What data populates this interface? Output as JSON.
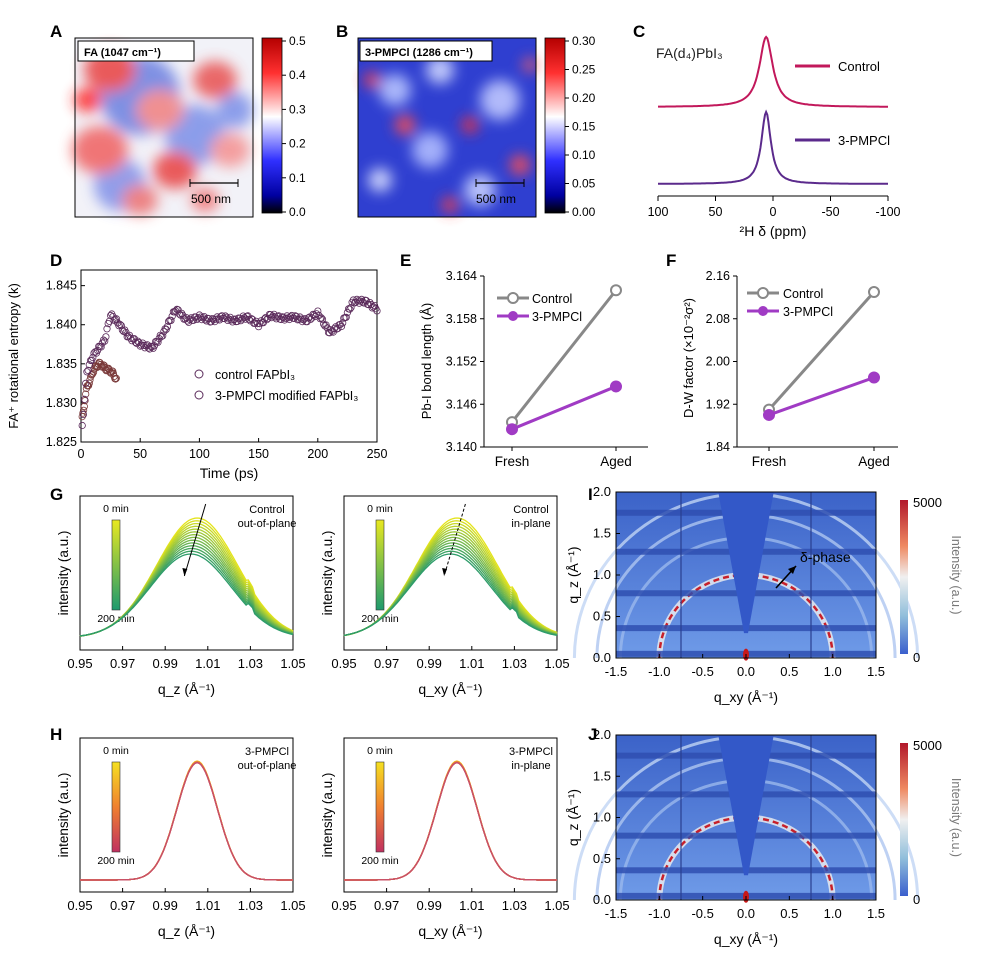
{
  "colors": {
    "control": "#c2185b",
    "pmpcl": "#5b2a8c",
    "control_line": "#888888",
    "pmpcl_line": "#a03bc4",
    "scatter_marker": "#5a2a5a"
  },
  "panels": {
    "A": {
      "letter": "A",
      "label": "FA (1047 cm⁻¹)",
      "scalebar": "500 nm",
      "colorbar_ticks": [
        "0.5",
        "0.4",
        "0.3",
        "0.2",
        "0.1",
        "0.0"
      ]
    },
    "B": {
      "letter": "B",
      "label": "3-PMPCl (1286 cm⁻¹)",
      "scalebar": "500 nm",
      "colorbar_ticks": [
        "0.30",
        "0.25",
        "0.20",
        "0.15",
        "0.10",
        "0.05",
        "0.00"
      ]
    },
    "C": {
      "letter": "C",
      "title": "FA(d₄)PbI₃",
      "xlabel": "²H δ (ppm)",
      "xticks": [
        "100",
        "50",
        "0",
        "-50",
        "-100"
      ],
      "legend": [
        "Control",
        "3-PMPCl"
      ]
    },
    "D": {
      "letter": "D",
      "ylabel": "FA⁺ rotational entropy (k)",
      "xlabel": "Time (ps)",
      "yticks": [
        "1.845",
        "1.840",
        "1.835",
        "1.830",
        "1.825"
      ],
      "xticks": [
        "0",
        "50",
        "100",
        "150",
        "200",
        "250"
      ],
      "legend": [
        "control FAPbI₃",
        "3-PMPCl modified FAPbI₃"
      ]
    },
    "E": {
      "letter": "E",
      "ylabel": "Pb-I bond length (Å)",
      "xticks": [
        "Fresh",
        "Aged"
      ],
      "yticks": [
        "3.164",
        "3.158",
        "3.152",
        "3.146",
        "3.140"
      ],
      "legend": [
        "Control",
        "3-PMPCl"
      ]
    },
    "F": {
      "letter": "F",
      "ylabel": "D-W factor (×10⁻²σ²)",
      "xticks": [
        "Fresh",
        "Aged"
      ],
      "yticks": [
        "2.16",
        "2.08",
        "2.00",
        "1.92",
        "1.84"
      ],
      "legend": [
        "Control",
        "3-PMPCl"
      ]
    },
    "G": {
      "letter": "G",
      "left": {
        "ylabel": "intensity (a.u.)",
        "xlabel": "q_z (Å⁻¹)",
        "annot1": "Control",
        "annot2": "out-of-plane",
        "cb_top": "0 min",
        "cb_bot": "200 min"
      },
      "right": {
        "ylabel": "intensity (a.u.)",
        "xlabel": "q_xy (Å⁻¹)",
        "annot1": "Control",
        "annot2": "in-plane",
        "cb_top": "0 min",
        "cb_bot": "200 min"
      },
      "xticks": [
        "0.95",
        "0.97",
        "0.99",
        "1.01",
        "1.03",
        "1.05"
      ]
    },
    "H": {
      "letter": "H",
      "left": {
        "ylabel": "intensity (a.u.)",
        "xlabel": "q_z (Å⁻¹)",
        "annot1": "3-PMPCl",
        "annot2": "out-of-plane",
        "cb_top": "0 min",
        "cb_bot": "200 min"
      },
      "right": {
        "ylabel": "intensity (a.u.)",
        "xlabel": "q_xy (Å⁻¹)",
        "annot1": "3-PMPCl",
        "annot2": "in-plane",
        "cb_top": "0 min",
        "cb_bot": "200 min"
      },
      "xticks": [
        "0.95",
        "0.97",
        "0.99",
        "1.01",
        "1.03",
        "1.05"
      ]
    },
    "I": {
      "letter": "I",
      "ylabel": "q_z (Å⁻¹)",
      "xlabel": "q_xy (Å⁻¹)",
      "annotation": "δ-phase",
      "xticks": [
        "-1.5",
        "-1.0",
        "-0.5",
        "0.0",
        "0.5",
        "1.0",
        "1.5"
      ],
      "yticks": [
        "2.0",
        "1.5",
        "1.0",
        "0.5",
        "0.0"
      ],
      "cb_label": "Intensity (a.u.)",
      "cb_ticks": [
        "5000",
        "0"
      ]
    },
    "J": {
      "letter": "J",
      "ylabel": "q_z (Å⁻¹)",
      "xlabel": "q_xy (Å⁻¹)",
      "xticks": [
        "-1.5",
        "-1.0",
        "-0.5",
        "0.0",
        "0.5",
        "1.0",
        "1.5"
      ],
      "yticks": [
        "2.0",
        "1.5",
        "1.0",
        "0.5",
        "0.0"
      ],
      "cb_label": "Intensity (a.u.)",
      "cb_ticks": [
        "5000",
        "0"
      ]
    }
  },
  "chart_data": [
    {
      "panel": "A",
      "type": "heatmap",
      "label": "FA (1047 cm⁻¹)",
      "colorbar_range": [
        0.0,
        0.5
      ],
      "colormap": "seismic"
    },
    {
      "panel": "B",
      "type": "heatmap",
      "label": "3-PMPCl (1286 cm⁻¹)",
      "colorbar_range": [
        0.0,
        0.3
      ],
      "colormap": "seismic"
    },
    {
      "panel": "C",
      "type": "line",
      "title": "FA(d₄)PbI₃",
      "xlabel": "²H δ (ppm)",
      "xlim": [
        100,
        -100
      ],
      "series": [
        {
          "name": "Control",
          "peak_x": 6
        },
        {
          "name": "3-PMPCl",
          "peak_x": 6
        }
      ]
    },
    {
      "panel": "D",
      "type": "scatter",
      "xlabel": "Time (ps)",
      "ylabel": "FA⁺ rotational entropy (k)",
      "xlim": [
        0,
        250
      ],
      "ylim": [
        1.825,
        1.847
      ],
      "series": [
        {
          "name": "control FAPbI₃",
          "x": [
            1,
            3,
            5,
            8,
            10,
            12,
            15,
            18,
            20,
            23,
            26,
            28,
            30
          ],
          "y": [
            1.828,
            1.83,
            1.832,
            1.833,
            1.834,
            1.8345,
            1.835,
            1.8348,
            1.8345,
            1.8342,
            1.834,
            1.8335,
            1.833
          ]
        },
        {
          "name": "3-PMPCl modified FAPbI₃",
          "x": [
            1,
            5,
            10,
            15,
            20,
            25,
            30,
            40,
            50,
            60,
            70,
            80,
            90,
            100,
            110,
            120,
            130,
            140,
            150,
            160,
            170,
            180,
            190,
            200,
            210,
            220,
            230,
            240,
            250
          ],
          "y": [
            1.827,
            1.834,
            1.836,
            1.837,
            1.838,
            1.8413,
            1.8405,
            1.8385,
            1.8375,
            1.837,
            1.839,
            1.842,
            1.8405,
            1.841,
            1.8405,
            1.841,
            1.8405,
            1.841,
            1.84,
            1.8412,
            1.8408,
            1.841,
            1.8405,
            1.8415,
            1.839,
            1.84,
            1.843,
            1.843,
            1.842
          ]
        }
      ]
    },
    {
      "panel": "E",
      "type": "line",
      "ylabel": "Pb-I bond length (Å)",
      "categories": [
        "Fresh",
        "Aged"
      ],
      "ylim": [
        3.14,
        3.164
      ],
      "series": [
        {
          "name": "Control",
          "values": [
            3.1435,
            3.162
          ]
        },
        {
          "name": "3-PMPCl",
          "values": [
            3.1425,
            3.1485
          ]
        }
      ]
    },
    {
      "panel": "F",
      "type": "line",
      "ylabel": "D-W factor (×10⁻²σ²)",
      "categories": [
        "Fresh",
        "Aged"
      ],
      "ylim": [
        1.84,
        2.16
      ],
      "series": [
        {
          "name": "Control",
          "values": [
            1.91,
            2.13
          ]
        },
        {
          "name": "3-PMPCl",
          "values": [
            1.9,
            1.97
          ]
        }
      ]
    },
    {
      "panel": "G-left",
      "type": "line",
      "xlabel": "q_z (Å⁻¹)",
      "xlim": [
        0.95,
        1.05
      ],
      "peak_x": 1.005,
      "time_range_min": [
        0,
        200
      ]
    },
    {
      "panel": "G-right",
      "type": "line",
      "xlabel": "q_xy (Å⁻¹)",
      "xlim": [
        0.95,
        1.05
      ],
      "peak_x": 1.003,
      "time_range_min": [
        0,
        200
      ]
    },
    {
      "panel": "H-left",
      "type": "line",
      "xlabel": "q_z (Å⁻¹)",
      "xlim": [
        0.95,
        1.05
      ],
      "peak_x": 1.005,
      "time_range_min": [
        0,
        200
      ]
    },
    {
      "panel": "H-right",
      "type": "line",
      "xlabel": "q_xy (Å⁻¹)",
      "xlim": [
        0.95,
        1.05
      ],
      "peak_x": 1.003,
      "time_range_min": [
        0,
        200
      ]
    },
    {
      "panel": "I",
      "type": "heatmap",
      "xlabel": "q_xy (Å⁻¹)",
      "ylabel": "q_z (Å⁻¹)",
      "xlim": [
        -1.5,
        1.5
      ],
      "ylim": [
        0,
        2.0
      ],
      "colorbar_range": [
        0,
        5000
      ]
    },
    {
      "panel": "J",
      "type": "heatmap",
      "xlabel": "q_xy (Å⁻¹)",
      "ylabel": "q_z (Å⁻¹)",
      "xlim": [
        -1.5,
        1.5
      ],
      "ylim": [
        0,
        2.0
      ],
      "colorbar_range": [
        0,
        5000
      ]
    }
  ]
}
